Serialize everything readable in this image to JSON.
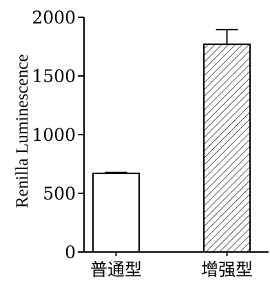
{
  "chart_data": {
    "type": "bar",
    "title": "",
    "xlabel": "",
    "ylabel": "Renilla Luminescence",
    "categories": [
      "普通型",
      "增强型"
    ],
    "values": [
      670,
      1770
    ],
    "error": [
      8,
      125
    ],
    "fill_patterns": [
      "none",
      "diagonal-hatch"
    ],
    "ylim": [
      0,
      2000
    ],
    "yticks": [
      0,
      500,
      1000,
      1500,
      2000
    ],
    "ytick_labels": [
      "0",
      "500",
      "1000",
      "1500",
      "2000"
    ],
    "grid": false,
    "legend": "none"
  }
}
